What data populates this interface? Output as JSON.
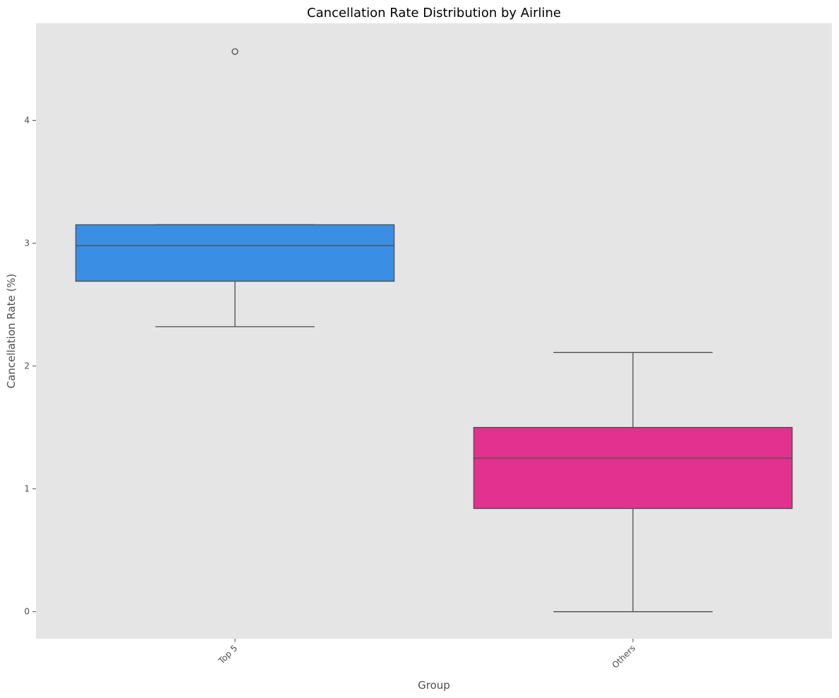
{
  "chart_data": {
    "type": "boxplot",
    "title": "Cancellation Rate Distribution by Airline",
    "xlabel": "Group",
    "ylabel": "Cancellation Rate (%)",
    "categories": [
      "Top 5",
      "Others"
    ],
    "boxes": [
      {
        "category": "Top 5",
        "whisker_low": 2.32,
        "q1": 2.69,
        "median": 2.98,
        "q3": 3.15,
        "whisker_high": 3.15,
        "outliers": [
          4.56
        ],
        "color": "#3a8ee3"
      },
      {
        "category": "Others",
        "whisker_low": 0.0,
        "q1": 0.84,
        "median": 1.25,
        "q3": 1.5,
        "whisker_high": 2.11,
        "outliers": [],
        "color": "#e2318e"
      }
    ],
    "yticks": [
      "0",
      "1",
      "2",
      "3",
      "4"
    ],
    "ylim": [
      -0.22,
      4.79
    ],
    "grid": false,
    "plot_background": "#e5e5e5"
  }
}
